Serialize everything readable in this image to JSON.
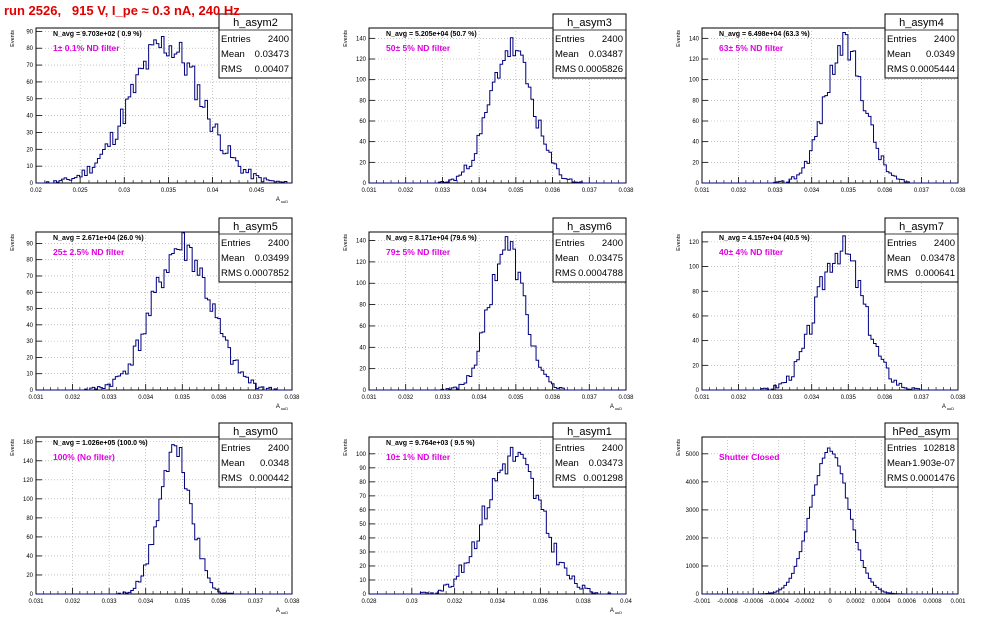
{
  "title": "run 2526,   915 V, I_pe ≈ 0.3 nA, 240 Hz",
  "colors": {
    "title": "#e00000",
    "filter_label": "#e000e0",
    "histogram": "#00007f",
    "grid": "#a0a0a0"
  },
  "y_axis_label": "Events",
  "chart_data": [
    {
      "type": "bar",
      "name": "h_asym2",
      "navg": "N_avg = 9.703e+02 ( 0.9 %)",
      "filter": "1± 0.1% ND filter",
      "stats": {
        "entries": "2400",
        "mean": "0.03473",
        "rms": "0.00407"
      },
      "xlabel": "A_uuD",
      "xlim": [
        0.02,
        0.049
      ],
      "xticks": [
        "0.02",
        "0.025",
        "0.03",
        "0.035",
        "0.04",
        "0.045"
      ],
      "ylim": [
        0,
        92
      ],
      "yticks": [
        0,
        10,
        20,
        30,
        40,
        50,
        60,
        70,
        80,
        90
      ],
      "dist": {
        "mean": 0.03473,
        "rms": 0.00407,
        "peak": 82,
        "seed": 11
      },
      "grid": true
    },
    {
      "type": "bar",
      "name": "h_asym3",
      "navg": "N_avg = 5.205e+04 (50.7 %)",
      "filter": "50± 5% ND filter",
      "stats": {
        "entries": "2400",
        "mean": "0.03487",
        "rms": "0.0005826"
      },
      "xlabel": "",
      "xlim": [
        0.031,
        0.038
      ],
      "xticks": [
        "0.031",
        "0.032",
        "0.033",
        "0.034",
        "0.035",
        "0.036",
        "0.037",
        "0.038"
      ],
      "ylim": [
        0,
        150
      ],
      "yticks": [
        0,
        20,
        40,
        60,
        80,
        100,
        120,
        140
      ],
      "dist": {
        "mean": 0.03487,
        "rms": 0.0005826,
        "peak": 130,
        "seed": 23
      },
      "grid": true
    },
    {
      "type": "bar",
      "name": "h_asym4",
      "navg": "N_avg = 6.498e+04 (63.3 %)",
      "filter": "63± 5% ND filter",
      "stats": {
        "entries": "2400",
        "mean": "0.0349",
        "rms": "0.0005444"
      },
      "xlabel": "",
      "xlim": [
        0.031,
        0.038
      ],
      "xticks": [
        "0.031",
        "0.032",
        "0.033",
        "0.034",
        "0.035",
        "0.036",
        "0.037",
        "0.038"
      ],
      "ylim": [
        0,
        150
      ],
      "yticks": [
        0,
        20,
        40,
        60,
        80,
        100,
        120,
        140
      ],
      "dist": {
        "mean": 0.0349,
        "rms": 0.0005444,
        "peak": 132,
        "seed": 37
      },
      "grid": true
    },
    {
      "type": "bar",
      "name": "h_asym5",
      "navg": "N_avg = 2.671e+04 (26.0 %)",
      "filter": "25± 2.5% ND filter",
      "stats": {
        "entries": "2400",
        "mean": "0.03499",
        "rms": "0.0007852"
      },
      "xlabel": "A_uuD",
      "xlim": [
        0.031,
        0.038
      ],
      "xticks": [
        "0.031",
        "0.032",
        "0.033",
        "0.034",
        "0.035",
        "0.036",
        "0.037",
        "0.038"
      ],
      "ylim": [
        0,
        97
      ],
      "yticks": [
        0,
        10,
        20,
        30,
        40,
        50,
        60,
        70,
        80,
        90
      ],
      "dist": {
        "mean": 0.03499,
        "rms": 0.0007852,
        "peak": 88,
        "seed": 41
      },
      "grid": true
    },
    {
      "type": "bar",
      "name": "h_asym6",
      "navg": "N_avg = 8.171e+04 (79.6 %)",
      "filter": "79± 5% ND filter",
      "stats": {
        "entries": "2400",
        "mean": "0.03475",
        "rms": "0.0004788"
      },
      "xlabel": "A_uuD",
      "xlim": [
        0.031,
        0.038
      ],
      "xticks": [
        "0.031",
        "0.032",
        "0.033",
        "0.034",
        "0.035",
        "0.036",
        "0.037",
        "0.038"
      ],
      "ylim": [
        0,
        148
      ],
      "yticks": [
        0,
        20,
        40,
        60,
        80,
        100,
        120,
        140
      ],
      "dist": {
        "mean": 0.03475,
        "rms": 0.0004788,
        "peak": 135,
        "seed": 53
      },
      "grid": true
    },
    {
      "type": "bar",
      "name": "h_asym7",
      "navg": "N_avg = 4.157e+04 (40.5 %)",
      "filter": "40± 4% ND filter",
      "stats": {
        "entries": "2400",
        "mean": "0.03478",
        "rms": "0.000641"
      },
      "xlabel": "A_uuD",
      "xlim": [
        0.031,
        0.038
      ],
      "xticks": [
        "0.031",
        "0.032",
        "0.033",
        "0.034",
        "0.035",
        "0.036",
        "0.037",
        "0.038"
      ],
      "ylim": [
        0,
        128
      ],
      "yticks": [
        0,
        20,
        40,
        60,
        80,
        100,
        120
      ],
      "dist": {
        "mean": 0.03478,
        "rms": 0.000641,
        "peak": 115,
        "seed": 67
      },
      "grid": true
    },
    {
      "type": "bar",
      "name": "h_asym0",
      "navg": "N_avg = 1.026e+05 (100.0 %)",
      "filter": "100% (No filter)",
      "stats": {
        "entries": "2400",
        "mean": "0.0348",
        "rms": "0.000442"
      },
      "xlabel": "A_uuD",
      "xlim": [
        0.031,
        0.038
      ],
      "xticks": [
        "0.031",
        "0.032",
        "0.033",
        "0.034",
        "0.035",
        "0.036",
        "0.037",
        "0.038"
      ],
      "ylim": [
        0,
        165
      ],
      "yticks": [
        0,
        20,
        40,
        60,
        80,
        100,
        120,
        140,
        160
      ],
      "dist": {
        "mean": 0.0348,
        "rms": 0.000442,
        "peak": 150,
        "seed": 71
      },
      "grid": true
    },
    {
      "type": "bar",
      "name": "h_asym1",
      "navg": "N_avg = 9.764e+03 ( 9.5 %)",
      "filter": "10± 1% ND filter",
      "stats": {
        "entries": "2400",
        "mean": "0.03473",
        "rms": "0.001298"
      },
      "xlabel": "A_uuD",
      "xlim": [
        0.028,
        0.04
      ],
      "xticks": [
        "0.028",
        "0.03",
        "0.032",
        "0.034",
        "0.036",
        "0.038",
        "0.04"
      ],
      "ylim": [
        0,
        112
      ],
      "yticks": [
        0,
        10,
        20,
        30,
        40,
        50,
        60,
        70,
        80,
        90,
        100
      ],
      "dist": {
        "mean": 0.03473,
        "rms": 0.001298,
        "peak": 98,
        "seed": 83
      },
      "grid": true
    },
    {
      "type": "bar",
      "name": "hPed_asym",
      "navg": "",
      "filter": "Shutter Closed",
      "stats": {
        "entries": "102818",
        "mean": "-1.903e-07",
        "rms": "0.0001476"
      },
      "xlabel": "",
      "xlim": [
        -0.001,
        0.001
      ],
      "xticks": [
        "-0.001",
        "-0.0008",
        "-0.0006",
        "-0.0004",
        "-0.0002",
        "0",
        "0.0002",
        "0.0004",
        "0.0006",
        "0.0008",
        "0.001"
      ],
      "ylim": [
        0,
        5600
      ],
      "yticks": [
        0,
        1000,
        2000,
        3000,
        4000,
        5000
      ],
      "dist": {
        "mean": 0.0,
        "rms": 0.0001476,
        "peak": 5150,
        "seed": 97
      },
      "grid": true
    }
  ],
  "stat_labels": {
    "entries": "Entries",
    "mean": "Mean",
    "rms": "RMS"
  }
}
